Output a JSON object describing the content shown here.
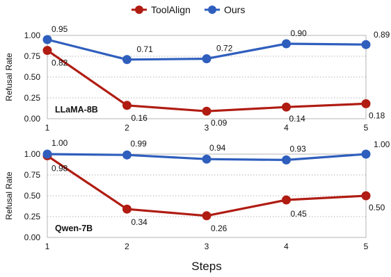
{
  "chart_data": {
    "type": "line",
    "legend": {
      "placement": "top-center",
      "entries": [
        {
          "name": "ToolAlign",
          "color": "#b01c12"
        },
        {
          "name": "Ours",
          "color": "#2f5ebd"
        }
      ]
    },
    "xlabel": "Steps",
    "x": [
      1,
      2,
      3,
      4,
      5
    ],
    "x_tick_labels": [
      "1",
      "2",
      "3",
      "4",
      "5"
    ],
    "grid": "horizontal dotted",
    "panels": [
      {
        "title": "LLaMA-8B",
        "ylabel": "Refusal Rate",
        "ylim": [
          0,
          1
        ],
        "y_ticks": [
          "0.00",
          "0.25",
          "0.50",
          "0.75",
          "1.00"
        ],
        "series": [
          {
            "name": "ToolAlign",
            "color": "#b01c12",
            "values": [
              0.82,
              0.16,
              0.09,
              0.14,
              0.18
            ],
            "labels": [
              "0.82",
              "0.16",
              "0.09",
              "0.14",
              "0.18"
            ]
          },
          {
            "name": "Ours",
            "color": "#2f5ebd",
            "values": [
              0.95,
              0.71,
              0.72,
              0.9,
              0.89
            ],
            "labels": [
              "0.95",
              "0.71",
              "0.72",
              "0.90",
              "0.89"
            ]
          }
        ]
      },
      {
        "title": "Qwen-7B",
        "ylabel": "Refusal Rate",
        "ylim": [
          0,
          1
        ],
        "y_ticks": [
          "0.00",
          "0.25",
          "0.50",
          "0.75",
          "1.00"
        ],
        "series": [
          {
            "name": "ToolAlign",
            "color": "#b01c12",
            "values": [
              0.98,
              0.34,
              0.26,
              0.45,
              0.5
            ],
            "labels": [
              "0.98",
              "0.34",
              "0.26",
              "0.45",
              "0.50"
            ]
          },
          {
            "name": "Ours",
            "color": "#2f5ebd",
            "values": [
              1.0,
              0.99,
              0.94,
              0.93,
              1.0
            ],
            "labels": [
              "1.00",
              "0.99",
              "0.94",
              "0.93",
              "1.00"
            ]
          }
        ]
      }
    ]
  }
}
